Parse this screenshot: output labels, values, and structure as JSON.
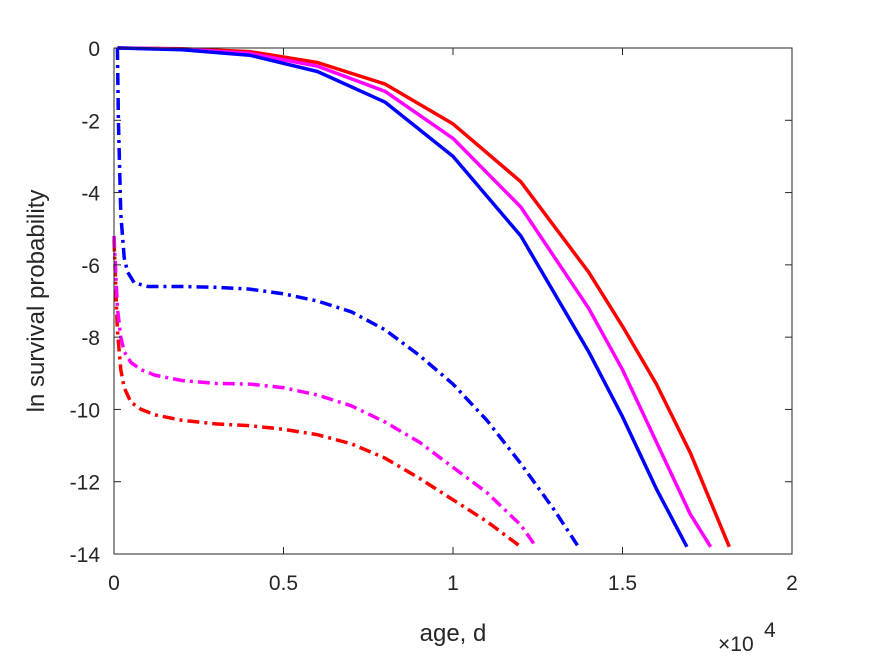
{
  "chart_data": {
    "type": "line",
    "xlabel": "age, d",
    "ylabel": "ln survival probability",
    "x_exponent_label": "×10",
    "x_exponent_power": "4",
    "xlim": [
      0,
      20000
    ],
    "ylim": [
      -14,
      0
    ],
    "xticks": [
      0,
      5000,
      10000,
      15000,
      20000
    ],
    "xtick_labels": [
      "0",
      "0.5",
      "1",
      "1.5",
      "2"
    ],
    "yticks": [
      0,
      -2,
      -4,
      -6,
      -8,
      -10,
      -12,
      -14
    ],
    "ytick_labels": [
      "0",
      "-2",
      "-4",
      "-6",
      "-8",
      "-10",
      "-12",
      "-14"
    ],
    "grid": false,
    "series": [
      {
        "color": "#ff0000",
        "style": "solid",
        "x": [
          100,
          2000,
          4000,
          6000,
          8000,
          10000,
          12000,
          14000,
          15000,
          16000,
          17000,
          18150
        ],
        "y": [
          0,
          -0.02,
          -0.1,
          -0.4,
          -1.0,
          -2.1,
          -3.7,
          -6.2,
          -7.7,
          -9.3,
          -11.2,
          -13.8
        ]
      },
      {
        "color": "#ff00ff",
        "style": "solid",
        "x": [
          100,
          2000,
          4000,
          6000,
          8000,
          10000,
          12000,
          14000,
          15000,
          16000,
          17000,
          17600
        ],
        "y": [
          0,
          -0.03,
          -0.15,
          -0.5,
          -1.2,
          -2.5,
          -4.4,
          -7.2,
          -8.9,
          -10.9,
          -12.9,
          -13.8
        ]
      },
      {
        "color": "#0000ff",
        "style": "solid",
        "x": [
          100,
          2000,
          4000,
          6000,
          8000,
          10000,
          12000,
          14000,
          15000,
          16000,
          16900
        ],
        "y": [
          0,
          -0.05,
          -0.2,
          -0.65,
          -1.5,
          -3.0,
          -5.2,
          -8.4,
          -10.2,
          -12.2,
          -13.8
        ]
      },
      {
        "color": "#ff0000",
        "style": "dashdot",
        "x": [
          0,
          100,
          200,
          300,
          500,
          800,
          1200,
          2000,
          3000,
          4000,
          5000,
          6000,
          7000,
          8000,
          9000,
          10000,
          11000,
          12000
        ],
        "y": [
          -5.3,
          -7.8,
          -8.9,
          -9.4,
          -9.8,
          -10.0,
          -10.15,
          -10.3,
          -10.4,
          -10.45,
          -10.55,
          -10.7,
          -10.95,
          -11.35,
          -11.9,
          -12.5,
          -13.1,
          -13.8
        ]
      },
      {
        "color": "#ff00ff",
        "style": "dashdot",
        "x": [
          0,
          100,
          200,
          300,
          500,
          800,
          1200,
          2000,
          3000,
          4000,
          5000,
          6000,
          7000,
          8000,
          9000,
          10000,
          11000,
          12000,
          12450
        ],
        "y": [
          -5.2,
          -7.2,
          -8.0,
          -8.4,
          -8.7,
          -8.9,
          -9.05,
          -9.2,
          -9.28,
          -9.3,
          -9.4,
          -9.6,
          -9.9,
          -10.35,
          -10.9,
          -11.6,
          -12.3,
          -13.2,
          -13.8
        ]
      },
      {
        "color": "#0000ff",
        "style": "dashdot",
        "x": [
          100,
          130,
          200,
          300,
          400,
          600,
          1000,
          1500,
          2000,
          3000,
          4000,
          5000,
          6000,
          7000,
          8000,
          9000,
          10000,
          11000,
          12000,
          13000,
          13700
        ],
        "y": [
          0,
          -2.0,
          -4.6,
          -5.8,
          -6.2,
          -6.5,
          -6.6,
          -6.6,
          -6.6,
          -6.62,
          -6.67,
          -6.8,
          -7.0,
          -7.3,
          -7.8,
          -8.5,
          -9.3,
          -10.3,
          -11.5,
          -12.8,
          -13.8
        ]
      }
    ]
  }
}
